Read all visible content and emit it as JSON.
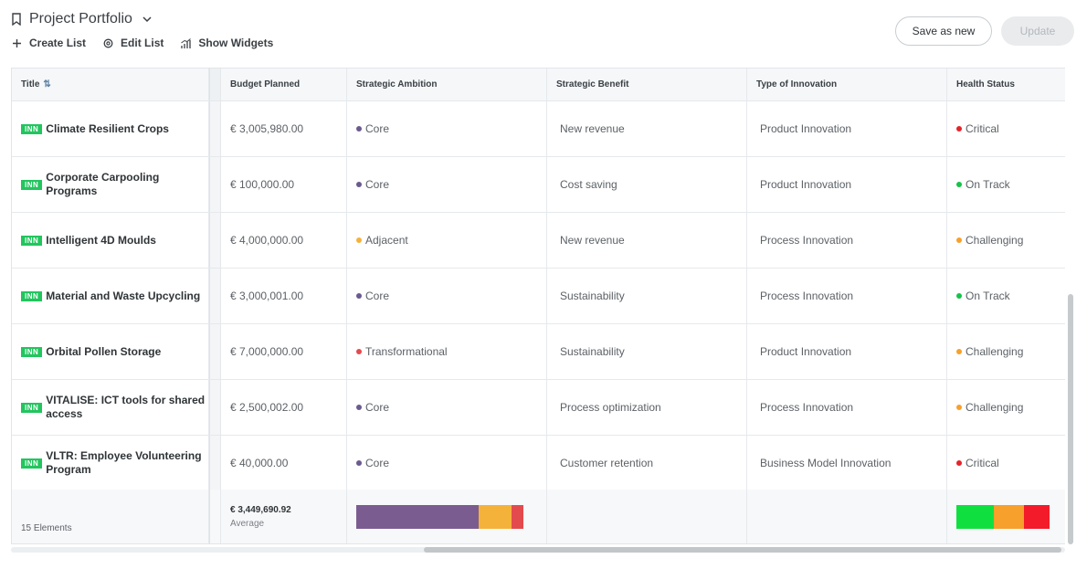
{
  "header": {
    "title": "Project Portfolio",
    "actions": {
      "create": "Create List",
      "edit": "Edit List",
      "widgets": "Show Widgets"
    },
    "save_label": "Save as new",
    "update_label": "Update"
  },
  "table": {
    "columns": {
      "title": "Title",
      "budget": "Budget Planned",
      "ambition": "Strategic Ambition",
      "benefit": "Strategic Benefit",
      "innovation": "Type of Innovation",
      "health": "Health Status"
    },
    "rows": [
      {
        "badge": "INN",
        "title": "Climate Resilient Crops",
        "budget": "€ 3,005,980.00",
        "ambition": "Core",
        "benefit": "New revenue",
        "innovation": "Product Innovation",
        "health": "Critical"
      },
      {
        "badge": "INN",
        "title": "Corporate Carpooling Programs",
        "budget": "€ 100,000.00",
        "ambition": "Core",
        "benefit": "Cost saving",
        "innovation": "Product Innovation",
        "health": "On Track"
      },
      {
        "badge": "INN",
        "title": "Intelligent 4D Moulds",
        "budget": "€ 4,000,000.00",
        "ambition": "Adjacent",
        "benefit": "New revenue",
        "innovation": "Process Innovation",
        "health": "Challenging"
      },
      {
        "badge": "INN",
        "title": "Material and Waste Upcycling",
        "budget": "€ 3,000,001.00",
        "ambition": "Core",
        "benefit": "Sustainability",
        "innovation": "Process Innovation",
        "health": "On Track"
      },
      {
        "badge": "INN",
        "title": "Orbital Pollen Storage",
        "budget": "€ 7,000,000.00",
        "ambition": "Transformational",
        "benefit": "Sustainability",
        "innovation": "Product Innovation",
        "health": "Challenging"
      },
      {
        "badge": "INN",
        "title": "VITALISE: ICT tools for shared access",
        "budget": "€ 2,500,002.00",
        "ambition": "Core",
        "benefit": "Process optimization",
        "innovation": "Process Innovation",
        "health": "Challenging"
      },
      {
        "badge": "INN",
        "title": "VLTR: Employee Volunteering Program",
        "budget": "€ 40,000.00",
        "ambition": "Core",
        "benefit": "Customer retention",
        "innovation": "Business Model Innovation",
        "health": "Critical"
      }
    ],
    "footer": {
      "count": "15 Elements",
      "average_value": "€ 3,449,690.92",
      "average_label": "Average",
      "ambition_distribution": [
        {
          "label": "Core",
          "fraction": 0.73,
          "color": "#7b5c91"
        },
        {
          "label": "Adjacent",
          "fraction": 0.2,
          "color": "#f5b23a"
        },
        {
          "label": "Transformational",
          "fraction": 0.07,
          "color": "#e34a4e"
        }
      ],
      "health_distribution": [
        {
          "label": "On Track",
          "fraction": 0.4,
          "color": "#0fe040"
        },
        {
          "label": "Challenging",
          "fraction": 0.33,
          "color": "#f7a02b"
        },
        {
          "label": "Critical",
          "fraction": 0.27,
          "color": "#f31b2a"
        }
      ]
    }
  },
  "colors": {
    "ambition": {
      "Core": "#6a5a8e",
      "Adjacent": "#f5b23a",
      "Transformational": "#e34a4e"
    },
    "health": {
      "Critical": "#e3242b",
      "On Track": "#18c24a",
      "Challenging": "#f7a02b"
    },
    "badge": "#22c55e"
  },
  "icons": {
    "bookmark": "bookmark-icon",
    "chevron": "chevron-down-icon",
    "plus": "plus-icon",
    "gear": "gear-icon",
    "widgets": "chart-icon",
    "sort": "sort-icon"
  }
}
